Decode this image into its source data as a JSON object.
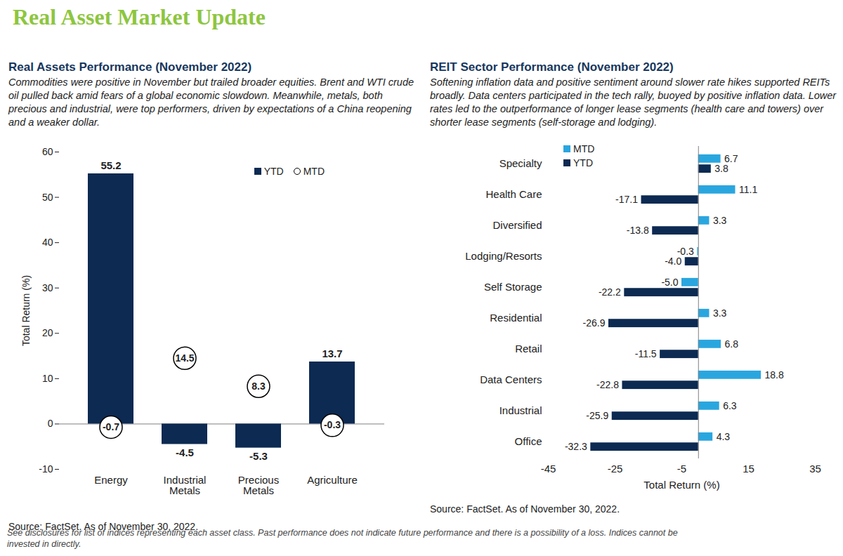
{
  "title": "Real Asset Market Update",
  "footnote": "See disclosures for list of indices representing each asset class. Past performance does not indicate future performance and there is a possibility of a loss. Indices cannot be invested in directly.",
  "chart_data": [
    {
      "type": "bar",
      "title": "Real Assets Performance (November 2022)",
      "subtitle": "Commodities were positive in November but trailed broader equities. Brent and WTI crude oil pulled back amid fears of a global economic slowdown. Meanwhile, metals, both precious and industrial, were top performers, driven by expectations of a China reopening and a weaker dollar.",
      "source": "Source: FactSet. As of November 30, 2022.",
      "ylabel": "Total Return (%)",
      "categories": [
        "Energy",
        "Industrial Metals",
        "Precious Metals",
        "Agriculture"
      ],
      "series": [
        {
          "name": "YTD",
          "type": "bar",
          "color": "#0c2a52",
          "values": [
            55.2,
            -4.5,
            -5.3,
            13.7
          ]
        },
        {
          "name": "MTD",
          "type": "scatter",
          "marker": "circle",
          "color": "#000000",
          "values": [
            -0.7,
            14.5,
            8.3,
            -0.3
          ]
        }
      ],
      "ylim": [
        -10,
        60
      ],
      "yticks": [
        -10,
        0,
        10,
        20,
        30,
        40,
        50,
        60
      ],
      "grid": false,
      "legend": "top-right",
      "data_labels": true
    },
    {
      "type": "bar",
      "orientation": "horizontal",
      "title": "REIT Sector Performance (November 2022)",
      "subtitle": "Softening inflation data and positive sentiment around slower rate hikes supported REITs broadly. Data centers participated in the tech rally, buoyed by positive inflation data. Lower rates led to the outperformance of longer lease segments (health care and towers) over shorter lease segments (self-storage and lodging).",
      "source": "Source: FactSet. As of November 30, 2022.",
      "xlabel": "Total Return (%)",
      "categories": [
        "Specialty",
        "Health Care",
        "Diversified",
        "Lodging/Resorts",
        "Self Storage",
        "Residential",
        "Retail",
        "Data Centers",
        "Industrial",
        "Office"
      ],
      "series": [
        {
          "name": "MTD",
          "color": "#2aa6df",
          "values": [
            6.7,
            11.1,
            3.3,
            -0.3,
            -5.0,
            3.3,
            6.8,
            18.8,
            6.3,
            4.3
          ],
          "value_labels": [
            "6.7",
            "11.1",
            "3.3",
            "-0.3",
            "-5.0",
            "3.3",
            "6.8",
            "18.8",
            "6.3",
            "4.3"
          ]
        },
        {
          "name": "YTD",
          "color": "#0c2a52",
          "values": [
            3.8,
            -17.1,
            -13.8,
            -4.0,
            -22.2,
            -26.9,
            -11.5,
            -22.8,
            -25.9,
            -32.3
          ],
          "value_labels": [
            "3.8",
            "-17.1",
            "-13.8",
            "-4.0",
            "-22.2",
            "-26.9",
            "-11.5",
            "-22.8",
            "-25.9",
            "-32.3"
          ]
        }
      ],
      "xlim": [
        -45,
        35
      ],
      "xticks": [
        -45,
        -25,
        -5,
        15,
        35
      ],
      "grid": false,
      "legend": "top-left",
      "data_labels": true
    }
  ]
}
